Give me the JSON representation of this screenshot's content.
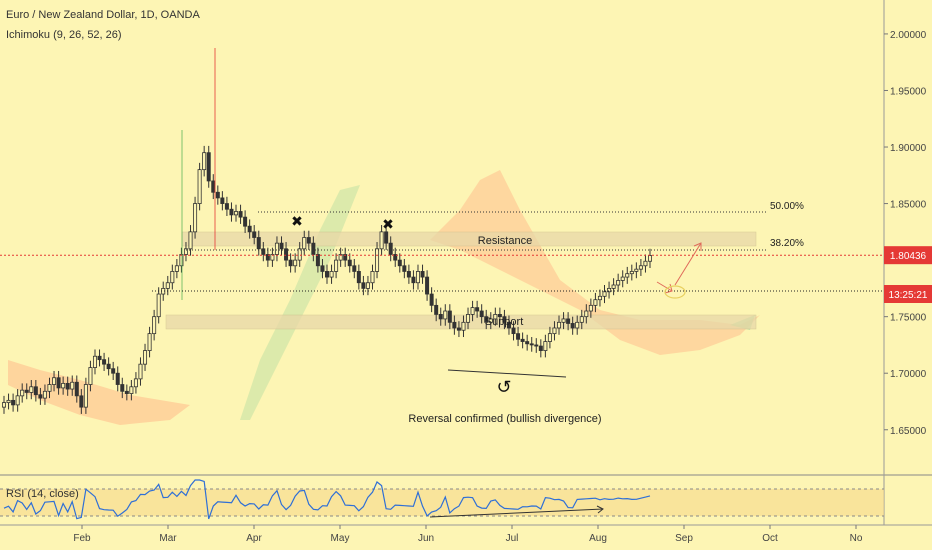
{
  "header": {
    "symbol_line": "Euro / New Zealand Dollar, 1D, OANDA",
    "indicator_line": "Ichimoku (9, 26, 52, 26)"
  },
  "rsi": {
    "label": "RSI (14, close)",
    "color": "#2f6fd6",
    "band_color": "#f7d98a"
  },
  "colors": {
    "up": "#3b3b3b",
    "down": "#3b3b3b",
    "price_line": "#e53935",
    "price_badge": "#e53935",
    "support_band": "#e8d8a8",
    "cloud_orange": "#ffb98a",
    "cloud_green": "#9fd89a",
    "arrow": "#e06a5a"
  },
  "price_badge": {
    "value": "1.80436",
    "countdown": "13:25:21"
  },
  "annotations": {
    "resistance": "Resistance",
    "support": "Support",
    "reversal": "Reversal confirmed (bullish divergence)",
    "fib_50": "50.00%",
    "fib_382": "38.20%"
  },
  "chart_data": {
    "type": "candlestick",
    "title": "Euro / New Zealand Dollar, 1D, OANDA",
    "y_ticks": [
      "2.00000",
      "1.95000",
      "1.90000",
      "1.85000",
      "1.80000",
      "1.75000",
      "1.70000",
      "1.65000"
    ],
    "y_tick_values": [
      2.0,
      1.95,
      1.9,
      1.85,
      1.8,
      1.75,
      1.7,
      1.65
    ],
    "ylim": [
      1.61,
      2.03
    ],
    "x_ticks": [
      "Feb",
      "Mar",
      "Apr",
      "May",
      "Jun",
      "Jul",
      "Aug",
      "Sep",
      "Oct",
      "No"
    ],
    "x_tick_months": [
      1,
      2,
      3,
      4,
      5,
      6,
      7,
      8,
      9,
      10
    ],
    "close_series": [
      1.674,
      1.676,
      1.672,
      1.68,
      1.685,
      1.683,
      1.688,
      1.681,
      1.678,
      1.684,
      1.69,
      1.696,
      1.687,
      1.691,
      1.686,
      1.692,
      1.68,
      1.67,
      1.69,
      1.705,
      1.715,
      1.712,
      1.708,
      1.704,
      1.7,
      1.69,
      1.684,
      1.682,
      1.688,
      1.695,
      1.708,
      1.72,
      1.735,
      1.75,
      1.77,
      1.775,
      1.78,
      1.79,
      1.795,
      1.805,
      1.81,
      1.825,
      1.85,
      1.88,
      1.895,
      1.87,
      1.86,
      1.855,
      1.85,
      1.845,
      1.84,
      1.843,
      1.838,
      1.83,
      1.825,
      1.82,
      1.81,
      1.805,
      1.8,
      1.805,
      1.815,
      1.81,
      1.8,
      1.795,
      1.8,
      1.81,
      1.82,
      1.815,
      1.805,
      1.795,
      1.79,
      1.785,
      1.79,
      1.8,
      1.805,
      1.8,
      1.795,
      1.79,
      1.78,
      1.775,
      1.78,
      1.79,
      1.81,
      1.825,
      1.815,
      1.805,
      1.8,
      1.795,
      1.79,
      1.785,
      1.78,
      1.79,
      1.785,
      1.77,
      1.76,
      1.752,
      1.748,
      1.755,
      1.745,
      1.74,
      1.738,
      1.745,
      1.752,
      1.758,
      1.755,
      1.75,
      1.745,
      1.748,
      1.752,
      1.75,
      1.745,
      1.74,
      1.735,
      1.73,
      1.728,
      1.726,
      1.725,
      1.724,
      1.72,
      1.728,
      1.735,
      1.74,
      1.745,
      1.748,
      1.744,
      1.74,
      1.745,
      1.75,
      1.755,
      1.76,
      1.765,
      1.768,
      1.772,
      1.775,
      1.778,
      1.782,
      1.785,
      1.788,
      1.79,
      1.792,
      1.795,
      1.799,
      1.804
    ],
    "current_price": 1.80436
  }
}
